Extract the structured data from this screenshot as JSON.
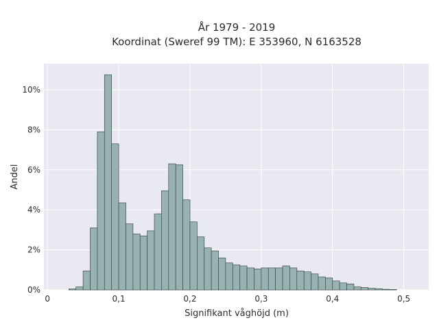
{
  "chart_data": {
    "type": "bar",
    "title": "År 1979 - 2019",
    "subtitle": "Koordinat (Sweref 99 TM): E 353960, N 6163528",
    "xlabel": "Signifikant våghöjd (m)",
    "ylabel": "Andel",
    "xlim": [
      -0.005,
      0.535
    ],
    "ylim": [
      0,
      11.3
    ],
    "x_ticks": [
      0,
      0.1,
      0.2,
      0.3,
      0.4,
      0.5
    ],
    "x_tick_labels": [
      "0",
      "0,1",
      "0,2",
      "0,3",
      "0,4",
      "0,5"
    ],
    "y_ticks": [
      0,
      2,
      4,
      6,
      8,
      10
    ],
    "y_tick_labels": [
      "0%",
      "2%",
      "4%",
      "6%",
      "8%",
      "10%"
    ],
    "grid": true,
    "bin_width": 0.01,
    "bin_starts": [
      0.03,
      0.04,
      0.05,
      0.06,
      0.07,
      0.08,
      0.09,
      0.1,
      0.11,
      0.12,
      0.13,
      0.14,
      0.15,
      0.16,
      0.17,
      0.18,
      0.19,
      0.2,
      0.21,
      0.22,
      0.23,
      0.24,
      0.25,
      0.26,
      0.27,
      0.28,
      0.29,
      0.3,
      0.31,
      0.32,
      0.33,
      0.34,
      0.35,
      0.36,
      0.37,
      0.38,
      0.39,
      0.4,
      0.41,
      0.42,
      0.43,
      0.44,
      0.45,
      0.46,
      0.47,
      0.48
    ],
    "values": [
      0.05,
      0.15,
      0.95,
      3.1,
      7.9,
      10.75,
      7.3,
      4.35,
      3.3,
      2.8,
      2.7,
      2.95,
      3.8,
      4.95,
      6.3,
      6.25,
      4.5,
      3.4,
      2.65,
      2.1,
      1.95,
      1.6,
      1.35,
      1.25,
      1.2,
      1.1,
      1.05,
      1.1,
      1.1,
      1.1,
      1.2,
      1.1,
      0.95,
      0.9,
      0.8,
      0.65,
      0.6,
      0.45,
      0.35,
      0.3,
      0.15,
      0.12,
      0.08,
      0.06,
      0.03,
      0.02
    ],
    "colors": {
      "bar_fill": "#98b2b1",
      "bar_edge": "#3c4a49",
      "plot_bg": "#e9e9f1",
      "grid": "#ffffff"
    }
  }
}
